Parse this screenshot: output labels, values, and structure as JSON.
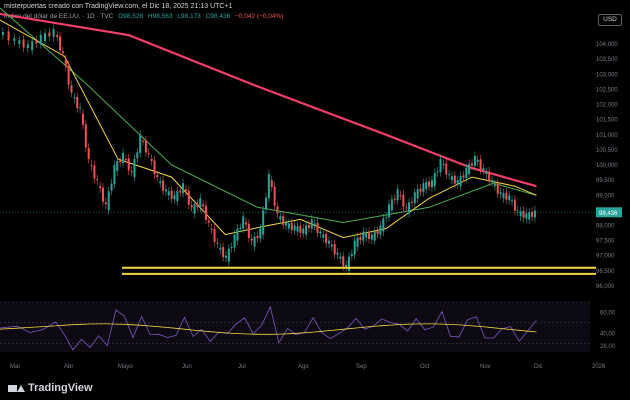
{
  "header": {
    "publisher": "misterpuertas creado con TradingView.com, el Dic 18, 2025 21:13 UTC+1"
  },
  "legend": {
    "symbol": "Índice del dólar de EE.UU. · 1D · TVC",
    "o": "O98,528",
    "h": "H98,563",
    "l": "L98,173",
    "c": "C98,436",
    "change": "−0,042 (−0,04%)"
  },
  "currency": "USD",
  "footer": {
    "brand": "TradingView"
  },
  "colors": {
    "up": "#26a69a",
    "down": "#ef5350",
    "sma200": "#f23e69",
    "sma50": "#4caf50",
    "sma20": "#f5d742",
    "sma10": "#3f51b5",
    "support": "#f5d742",
    "rsi": "#7e57c2",
    "rsi_ma": "#f5d742"
  },
  "chart_data": {
    "type": "candlestick",
    "instrument": "Índice del dólar de EE.UU.",
    "timeframe": "1D",
    "x_tick_labels": [
      "Mar",
      "Abr",
      "Mayo",
      "Jun",
      "Jul",
      "Ago",
      "Sep",
      "Oct",
      "Nov",
      "Dic",
      "2026"
    ],
    "y_tick_labels": [
      "104,000",
      "103,500",
      "103,000",
      "102,500",
      "102,000",
      "101,500",
      "101,000",
      "100,500",
      "100,000",
      "99,500",
      "99,000",
      "98,500",
      "98,000",
      "97,500",
      "97,000",
      "96,500",
      "96,000"
    ],
    "ylim": [
      95.7,
      104.6
    ],
    "last_price": "98,436",
    "price_path": [
      {
        "x": 0,
        "y": 104.4
      },
      {
        "x": 8,
        "y": 104.1
      },
      {
        "x": 14,
        "y": 103.9
      },
      {
        "x": 20,
        "y": 104.2
      },
      {
        "x": 26,
        "y": 104.4
      },
      {
        "x": 30,
        "y": 103.6
      },
      {
        "x": 34,
        "y": 102.3
      },
      {
        "x": 38,
        "y": 101.8
      },
      {
        "x": 42,
        "y": 100.1
      },
      {
        "x": 46,
        "y": 99.4
      },
      {
        "x": 50,
        "y": 98.6
      },
      {
        "x": 54,
        "y": 99.9
      },
      {
        "x": 58,
        "y": 100.3
      },
      {
        "x": 62,
        "y": 99.7
      },
      {
        "x": 66,
        "y": 100.9
      },
      {
        "x": 70,
        "y": 100.3
      },
      {
        "x": 74,
        "y": 99.5
      },
      {
        "x": 78,
        "y": 99.1
      },
      {
        "x": 82,
        "y": 98.9
      },
      {
        "x": 86,
        "y": 99.3
      },
      {
        "x": 90,
        "y": 98.5
      },
      {
        "x": 94,
        "y": 98.8
      },
      {
        "x": 98,
        "y": 98.0
      },
      {
        "x": 102,
        "y": 97.3
      },
      {
        "x": 106,
        "y": 96.9
      },
      {
        "x": 110,
        "y": 97.6
      },
      {
        "x": 114,
        "y": 98.2
      },
      {
        "x": 118,
        "y": 97.4
      },
      {
        "x": 122,
        "y": 97.8
      },
      {
        "x": 126,
        "y": 99.6
      },
      {
        "x": 130,
        "y": 98.3
      },
      {
        "x": 134,
        "y": 98.0
      },
      {
        "x": 138,
        "y": 97.9
      },
      {
        "x": 142,
        "y": 97.8
      },
      {
        "x": 146,
        "y": 98.1
      },
      {
        "x": 150,
        "y": 97.7
      },
      {
        "x": 154,
        "y": 97.4
      },
      {
        "x": 158,
        "y": 97.0
      },
      {
        "x": 162,
        "y": 96.6
      },
      {
        "x": 166,
        "y": 97.4
      },
      {
        "x": 170,
        "y": 97.7
      },
      {
        "x": 174,
        "y": 97.6
      },
      {
        "x": 178,
        "y": 97.9
      },
      {
        "x": 182,
        "y": 98.6
      },
      {
        "x": 186,
        "y": 99.1
      },
      {
        "x": 190,
        "y": 98.5
      },
      {
        "x": 194,
        "y": 99.0
      },
      {
        "x": 198,
        "y": 99.3
      },
      {
        "x": 202,
        "y": 99.4
      },
      {
        "x": 206,
        "y": 100.1
      },
      {
        "x": 210,
        "y": 99.6
      },
      {
        "x": 214,
        "y": 99.4
      },
      {
        "x": 218,
        "y": 99.8
      },
      {
        "x": 222,
        "y": 100.2
      },
      {
        "x": 226,
        "y": 99.8
      },
      {
        "x": 230,
        "y": 99.4
      },
      {
        "x": 234,
        "y": 99.0
      },
      {
        "x": 238,
        "y": 98.9
      },
      {
        "x": 242,
        "y": 98.4
      },
      {
        "x": 246,
        "y": 98.3
      },
      {
        "x": 250,
        "y": 98.4
      }
    ],
    "sma200": [
      {
        "x": 0,
        "y": 105.0
      },
      {
        "x": 60,
        "y": 104.3
      },
      {
        "x": 120,
        "y": 102.6
      },
      {
        "x": 180,
        "y": 101.0
      },
      {
        "x": 220,
        "y": 99.9
      },
      {
        "x": 250,
        "y": 99.3
      }
    ],
    "sma50": [
      {
        "x": 0,
        "y": 105.2
      },
      {
        "x": 40,
        "y": 102.7
      },
      {
        "x": 80,
        "y": 100.0
      },
      {
        "x": 120,
        "y": 98.6
      },
      {
        "x": 160,
        "y": 98.1
      },
      {
        "x": 200,
        "y": 98.6
      },
      {
        "x": 230,
        "y": 99.4
      },
      {
        "x": 250,
        "y": 99.0
      }
    ],
    "sma20": [
      {
        "x": 0,
        "y": 104.8
      },
      {
        "x": 30,
        "y": 103.6
      },
      {
        "x": 55,
        "y": 100.2
      },
      {
        "x": 80,
        "y": 99.6
      },
      {
        "x": 105,
        "y": 97.7
      },
      {
        "x": 125,
        "y": 98.0
      },
      {
        "x": 140,
        "y": 98.2
      },
      {
        "x": 160,
        "y": 97.6
      },
      {
        "x": 180,
        "y": 97.9
      },
      {
        "x": 200,
        "y": 98.9
      },
      {
        "x": 220,
        "y": 99.6
      },
      {
        "x": 240,
        "y": 99.3
      },
      {
        "x": 250,
        "y": 99.0
      }
    ],
    "support_zone": {
      "upper": 96.6,
      "lower": 96.4
    },
    "rsi": {
      "tick_labels": [
        "60,00",
        "40,00",
        "28,00"
      ],
      "ylim": [
        22,
        70
      ],
      "levels": [
        70,
        50,
        30
      ]
    }
  }
}
